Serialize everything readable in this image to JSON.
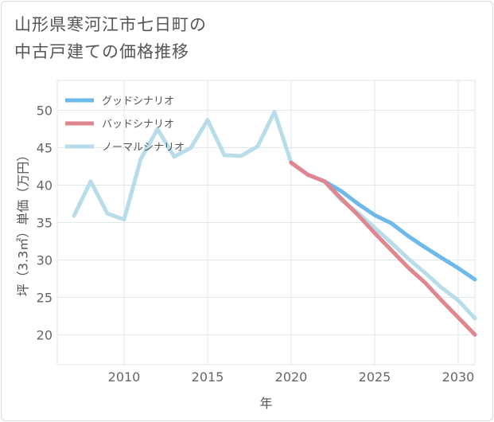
{
  "title_lines": [
    "山形県寒河江市七日町の",
    "中古戸建ての価格推移"
  ],
  "chart_data": {
    "type": "line",
    "xlabel": "年",
    "ylabel": "坪（3.3㎡）単価（万円）",
    "xlim": [
      2006,
      2031
    ],
    "ylim": [
      16,
      54
    ],
    "xticks": [
      2010,
      2015,
      2020,
      2025,
      2030
    ],
    "yticks": [
      20,
      25,
      30,
      35,
      40,
      45,
      50
    ],
    "grid": true,
    "legend_position": "top-left",
    "series": [
      {
        "name": "グッドシナリオ",
        "color": "#6cb9ea",
        "x": [
          2020,
          2021,
          2022,
          2023,
          2024,
          2025,
          2026,
          2027,
          2028,
          2029,
          2030,
          2031
        ],
        "values": [
          43.0,
          41.4,
          40.5,
          39.2,
          37.5,
          36.0,
          34.9,
          33.2,
          31.7,
          30.3,
          28.9,
          27.4
        ]
      },
      {
        "name": "バッドシナリオ",
        "color": "#e0868f",
        "x": [
          2020,
          2021,
          2022,
          2023,
          2024,
          2025,
          2026,
          2027,
          2028,
          2029,
          2030,
          2031
        ],
        "values": [
          43.0,
          41.4,
          40.5,
          38.2,
          36.0,
          33.6,
          31.3,
          29.0,
          27.0,
          24.6,
          22.3,
          20.0
        ]
      },
      {
        "name": "ノーマルシナリオ",
        "color": "#b8dde9",
        "x": [
          2007,
          2008,
          2009,
          2010,
          2011,
          2012,
          2013,
          2014,
          2015,
          2016,
          2017,
          2018,
          2019,
          2020,
          2021,
          2022,
          2023,
          2024,
          2025,
          2026,
          2027,
          2028,
          2029,
          2030,
          2031
        ],
        "values": [
          35.9,
          40.5,
          36.2,
          35.4,
          43.5,
          47.5,
          43.8,
          45.0,
          48.7,
          44.0,
          43.9,
          45.2,
          49.8,
          43.0,
          41.4,
          40.5,
          38.0,
          36.3,
          34.3,
          32.3,
          30.2,
          28.3,
          26.3,
          24.6,
          22.2
        ]
      }
    ]
  }
}
